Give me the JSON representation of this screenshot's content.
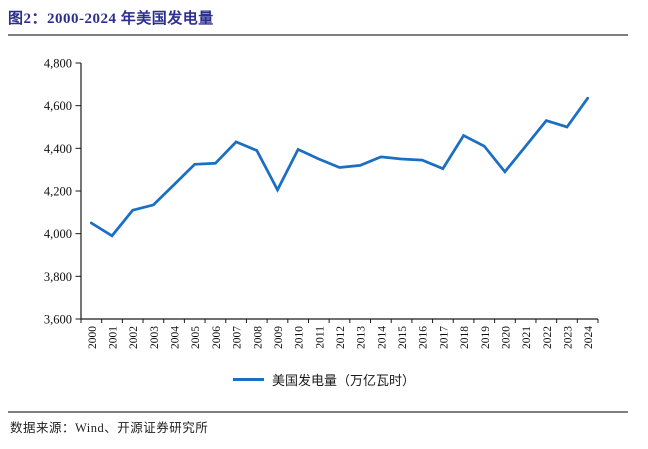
{
  "header": {
    "title": "图2：2000-2024 年美国发电量"
  },
  "legend": {
    "label": "美国发电量（万亿瓦时）"
  },
  "footer": {
    "source": "数据来源：Wind、开源证券研究所"
  },
  "colors": {
    "line": "#1B6FC2",
    "title_text": "#2B2F8E",
    "divider": "#7f7f7f",
    "axis": "#1a1a1a"
  },
  "chart_data": {
    "type": "line",
    "title": "图2：2000-2024 年美国发电量",
    "categories": [
      "2000",
      "2001",
      "2002",
      "2003",
      "2004",
      "2005",
      "2006",
      "2007",
      "2008",
      "2009",
      "2010",
      "2011",
      "2012",
      "2013",
      "2014",
      "2015",
      "2016",
      "2017",
      "2018",
      "2019",
      "2020",
      "2021",
      "2022",
      "2023",
      "2024"
    ],
    "series": [
      {
        "name": "美国发电量（万亿瓦时）",
        "values": [
          4050,
          3990,
          4110,
          4135,
          4230,
          4325,
          4330,
          4430,
          4390,
          4205,
          4395,
          4350,
          4310,
          4320,
          4360,
          4350,
          4345,
          4305,
          4460,
          4410,
          4290,
          4410,
          4530,
          4500,
          4635
        ]
      }
    ],
    "xlabel": "",
    "ylabel": "",
    "ylim": [
      3600,
      4800
    ],
    "ytick_interval": 200,
    "ytick_labels": [
      "3,600",
      "3,800",
      "4,000",
      "4,200",
      "4,400",
      "4,600",
      "4,800"
    ],
    "grid": false,
    "legend_position": "bottom"
  }
}
